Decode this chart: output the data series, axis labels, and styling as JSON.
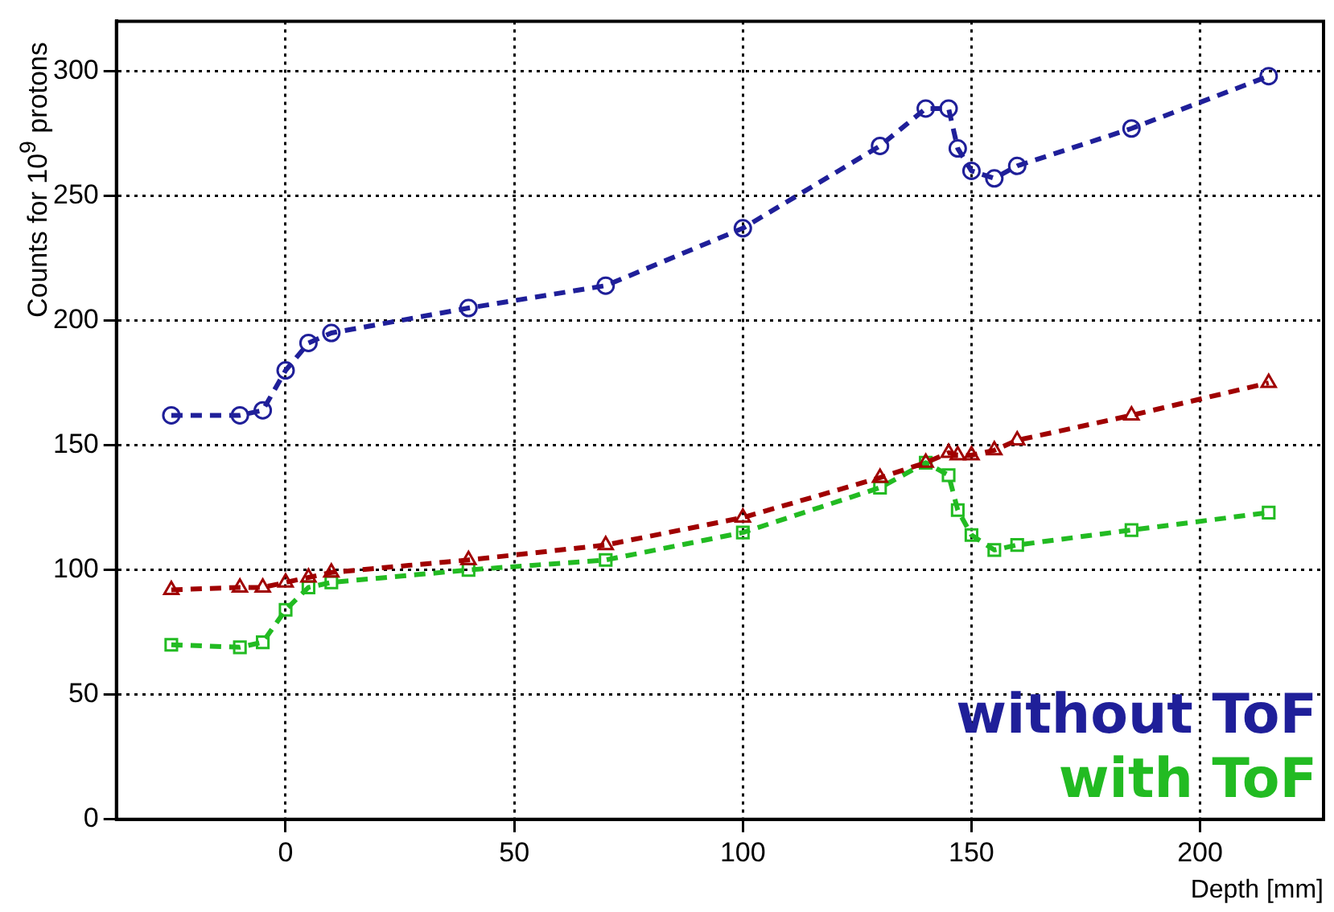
{
  "chart_data": {
    "type": "line",
    "xlabel": "Depth [mm]",
    "ylabel": "Counts for 10$^{9}$ protons",
    "x": [
      -25,
      -10,
      -5,
      0,
      5,
      10,
      40,
      70,
      100,
      130,
      140,
      145,
      147,
      150,
      155,
      160,
      185,
      215
    ],
    "xlim": [
      -37,
      227
    ],
    "xticks": [
      0,
      50,
      100,
      150,
      200
    ],
    "ylim": [
      0,
      320
    ],
    "yticks": [
      0,
      50,
      100,
      150,
      200,
      250,
      300
    ],
    "grid": true,
    "legend": "bottom right",
    "line_style": "dashed",
    "series": [
      {
        "name": "without ToF",
        "color": "#1f1f99",
        "marker": "circle",
        "values": [
          162,
          162,
          164,
          180,
          191,
          195,
          205,
          214,
          237,
          270,
          285,
          285,
          269,
          260,
          257,
          262,
          277,
          298
        ]
      },
      {
        "color": "#a00000",
        "marker": "triangle",
        "values": [
          92,
          93,
          93,
          95,
          97,
          99,
          104,
          110,
          121,
          137,
          143,
          147,
          146,
          146,
          148,
          152,
          162,
          175
        ]
      },
      {
        "name": "with ToF",
        "color": "#22bb22",
        "marker": "square",
        "values": [
          70,
          69,
          71,
          84,
          93,
          95,
          100,
          104,
          115,
          133,
          143,
          138,
          124,
          114,
          108,
          110,
          116,
          123
        ]
      }
    ]
  }
}
